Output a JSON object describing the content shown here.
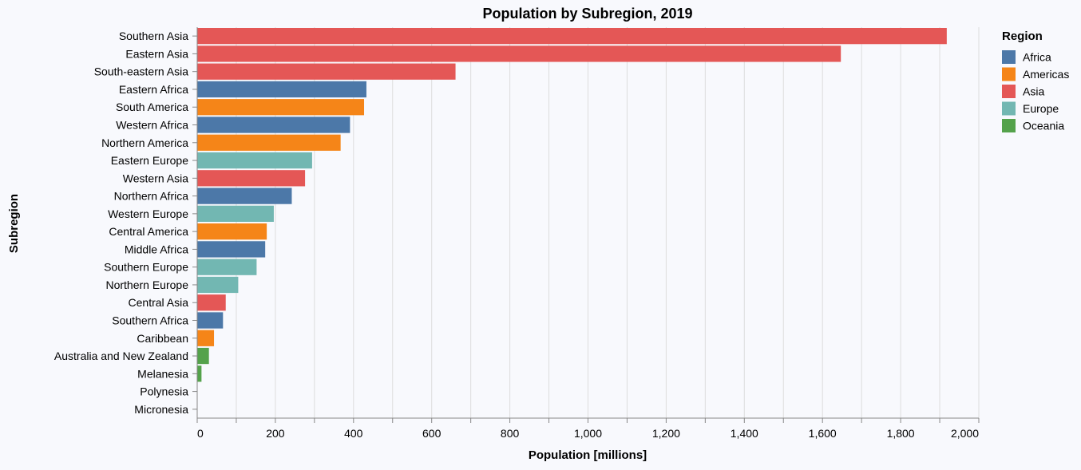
{
  "chart_data": {
    "type": "bar",
    "orientation": "horizontal",
    "title": "Population by Subregion, 2019",
    "xlabel": "Population [millions]",
    "ylabel": "Subregion",
    "xlim": [
      0,
      2000
    ],
    "xticks": [
      0,
      200,
      400,
      600,
      800,
      1000,
      1200,
      1400,
      1600,
      1800,
      2000
    ],
    "xtick_labels": [
      "0",
      "200",
      "400",
      "600",
      "800",
      "1,000",
      "1,200",
      "1,400",
      "1,600",
      "1,800",
      "2,000"
    ],
    "grid": true,
    "legend": {
      "title": "Region",
      "position": "top-right",
      "entries": [
        {
          "name": "Africa",
          "color": "#4c78a8"
        },
        {
          "name": "Americas",
          "color": "#f58518"
        },
        {
          "name": "Asia",
          "color": "#e45756"
        },
        {
          "name": "Europe",
          "color": "#72b7b2"
        },
        {
          "name": "Oceania",
          "color": "#54a24b"
        }
      ]
    },
    "categories": [
      "Southern Asia",
      "Eastern Asia",
      "South-eastern Asia",
      "Eastern Africa",
      "South America",
      "Western Africa",
      "Northern America",
      "Eastern Europe",
      "Western Asia",
      "Northern Africa",
      "Western Europe",
      "Central America",
      "Middle Africa",
      "Southern Europe",
      "Northern Europe",
      "Central Asia",
      "Southern Africa",
      "Caribbean",
      "Australia and New Zealand",
      "Melanesia",
      "Polynesia",
      "Micronesia"
    ],
    "regions": [
      "Asia",
      "Asia",
      "Asia",
      "Africa",
      "Americas",
      "Africa",
      "Americas",
      "Europe",
      "Asia",
      "Africa",
      "Europe",
      "Americas",
      "Africa",
      "Europe",
      "Europe",
      "Asia",
      "Africa",
      "Americas",
      "Oceania",
      "Oceania",
      "Oceania",
      "Oceania"
    ],
    "values": [
      1918,
      1647,
      661,
      433,
      427,
      391,
      367,
      294,
      276,
      242,
      196,
      178,
      174,
      152,
      105,
      73,
      66,
      43,
      30,
      11,
      0.7,
      0.5
    ]
  }
}
